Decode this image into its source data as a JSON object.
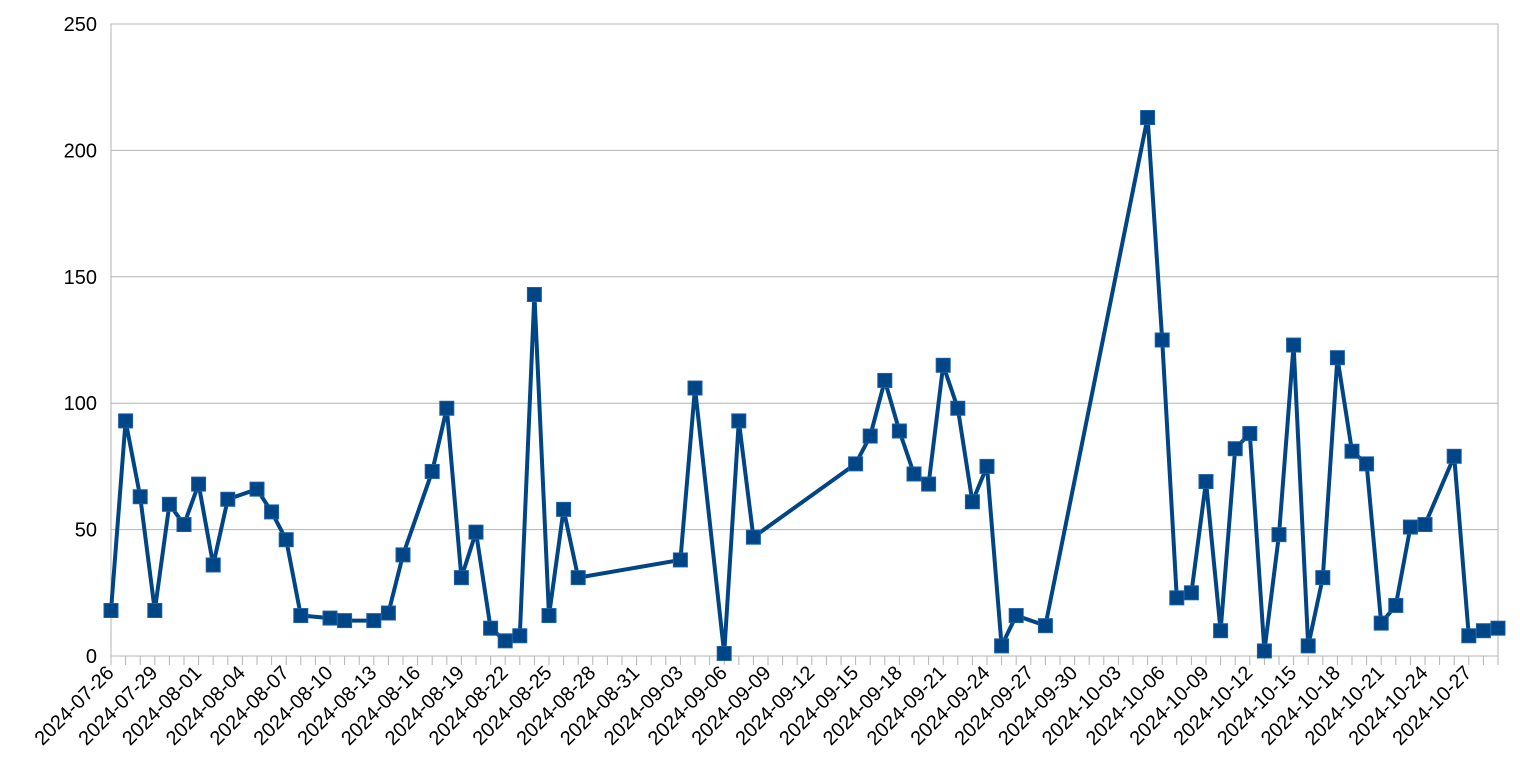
{
  "chart_data": {
    "type": "line",
    "title": "",
    "xlabel": "",
    "ylabel": "",
    "ylim": [
      0,
      250
    ],
    "yticks": [
      0,
      50,
      100,
      150,
      200,
      250
    ],
    "xlim": [
      "2024-07-26",
      "2024-10-29"
    ],
    "xtick_labels": [
      "2024-07-26",
      "2024-07-29",
      "2024-08-01",
      "2024-08-04",
      "2024-08-07",
      "2024-08-10",
      "2024-08-13",
      "2024-08-16",
      "2024-08-19",
      "2024-08-22",
      "2024-08-25",
      "2024-08-28",
      "2024-08-31",
      "2024-09-03",
      "2024-09-06",
      "2024-09-09",
      "2024-09-12",
      "2024-09-15",
      "2024-09-18",
      "2024-09-21",
      "2024-09-24",
      "2024-09-27",
      "2024-09-30",
      "2024-10-03",
      "2024-10-06",
      "2024-10-09",
      "2024-10-12",
      "2024-10-15",
      "2024-10-18",
      "2024-10-21",
      "2024-10-24",
      "2024-10-27"
    ],
    "grid": "horizontal",
    "legend": "none",
    "series": [
      {
        "color": "#004586",
        "marker": "square",
        "points": [
          [
            "2024-07-26",
            18
          ],
          [
            "2024-07-27",
            93
          ],
          [
            "2024-07-28",
            63
          ],
          [
            "2024-07-29",
            18
          ],
          [
            "2024-07-30",
            60
          ],
          [
            "2024-07-31",
            52
          ],
          [
            "2024-08-01",
            68
          ],
          [
            "2024-08-02",
            36
          ],
          [
            "2024-08-03",
            62
          ],
          [
            "2024-08-05",
            66
          ],
          [
            "2024-08-06",
            57
          ],
          [
            "2024-08-07",
            46
          ],
          [
            "2024-08-08",
            16
          ],
          [
            "2024-08-10",
            15
          ],
          [
            "2024-08-11",
            14
          ],
          [
            "2024-08-13",
            14
          ],
          [
            "2024-08-14",
            17
          ],
          [
            "2024-08-15",
            40
          ],
          [
            "2024-08-17",
            73
          ],
          [
            "2024-08-18",
            98
          ],
          [
            "2024-08-19",
            31
          ],
          [
            "2024-08-20",
            49
          ],
          [
            "2024-08-21",
            11
          ],
          [
            "2024-08-22",
            6
          ],
          [
            "2024-08-23",
            8
          ],
          [
            "2024-08-24",
            143
          ],
          [
            "2024-08-25",
            16
          ],
          [
            "2024-08-26",
            58
          ],
          [
            "2024-08-27",
            31
          ],
          [
            "2024-09-03",
            38
          ],
          [
            "2024-09-04",
            106
          ],
          [
            "2024-09-06",
            1
          ],
          [
            "2024-09-07",
            93
          ],
          [
            "2024-09-08",
            47
          ],
          [
            "2024-09-15",
            76
          ],
          [
            "2024-09-16",
            87
          ],
          [
            "2024-09-17",
            109
          ],
          [
            "2024-09-18",
            89
          ],
          [
            "2024-09-19",
            72
          ],
          [
            "2024-09-20",
            68
          ],
          [
            "2024-09-21",
            115
          ],
          [
            "2024-09-22",
            98
          ],
          [
            "2024-09-23",
            61
          ],
          [
            "2024-09-24",
            75
          ],
          [
            "2024-09-25",
            4
          ],
          [
            "2024-09-26",
            16
          ],
          [
            "2024-09-28",
            12
          ],
          [
            "2024-10-05",
            213
          ],
          [
            "2024-10-06",
            125
          ],
          [
            "2024-10-07",
            23
          ],
          [
            "2024-10-08",
            25
          ],
          [
            "2024-10-09",
            69
          ],
          [
            "2024-10-10",
            10
          ],
          [
            "2024-10-11",
            82
          ],
          [
            "2024-10-12",
            88
          ],
          [
            "2024-10-13",
            2
          ],
          [
            "2024-10-14",
            48
          ],
          [
            "2024-10-15",
            123
          ],
          [
            "2024-10-16",
            4
          ],
          [
            "2024-10-17",
            31
          ],
          [
            "2024-10-18",
            118
          ],
          [
            "2024-10-19",
            81
          ],
          [
            "2024-10-20",
            76
          ],
          [
            "2024-10-21",
            13
          ],
          [
            "2024-10-22",
            20
          ],
          [
            "2024-10-23",
            51
          ],
          [
            "2024-10-24",
            52
          ],
          [
            "2024-10-26",
            79
          ],
          [
            "2024-10-27",
            8
          ],
          [
            "2024-10-28",
            10
          ],
          [
            "2024-10-29",
            11
          ]
        ]
      }
    ]
  }
}
